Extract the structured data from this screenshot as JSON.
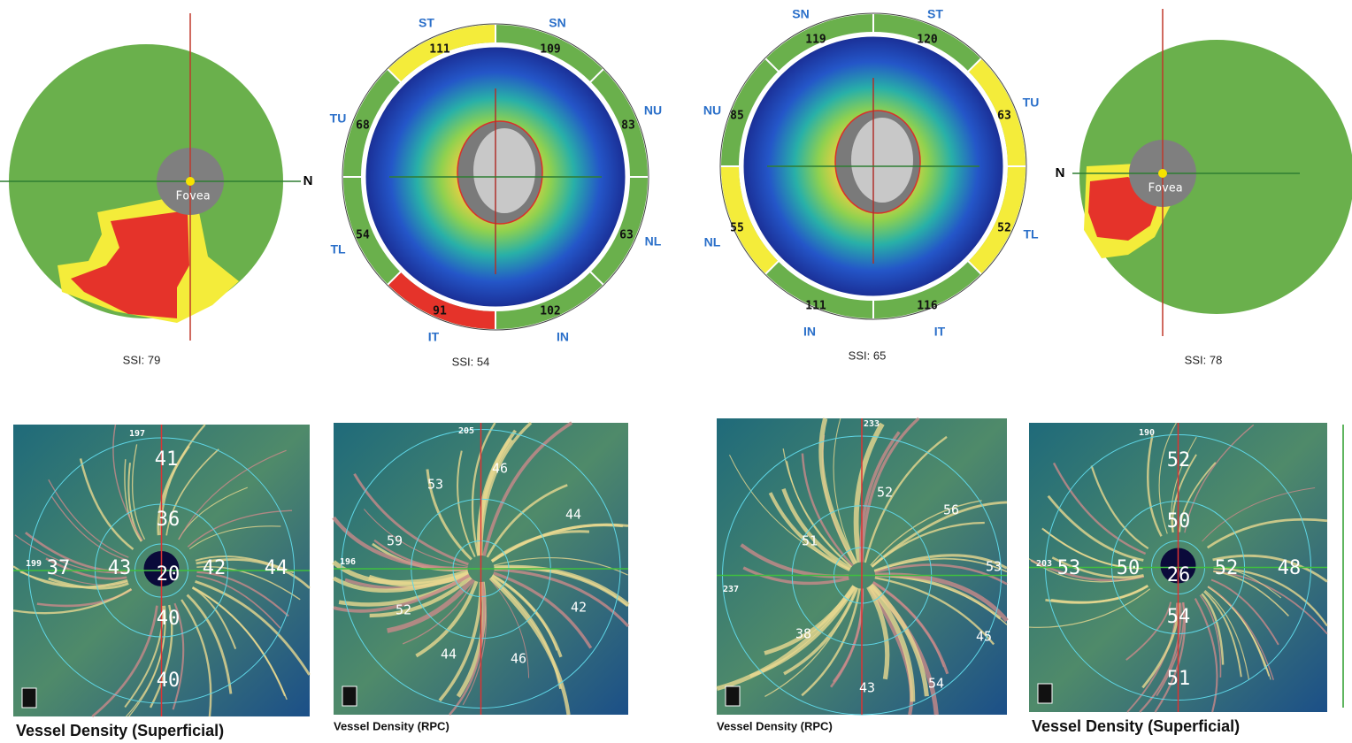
{
  "top": [
    {
      "side": "N",
      "label": "Fovea",
      "ssi": "SSI: 79"
    },
    {
      "sectors": [
        {
          "name": "ST",
          "value": 111
        },
        {
          "name": "SN",
          "value": 109
        },
        {
          "name": "TU",
          "value": 68
        },
        {
          "name": "NU",
          "value": 83
        },
        {
          "name": "TL",
          "value": 54
        },
        {
          "name": "NL",
          "value": 63
        },
        {
          "name": "IT",
          "value": 91
        },
        {
          "name": "IN",
          "value": 102
        }
      ],
      "ssi": "SSI: 54"
    },
    {
      "sectors": [
        {
          "name": "SN",
          "value": 119
        },
        {
          "name": "ST",
          "value": 120
        },
        {
          "name": "NU",
          "value": 85
        },
        {
          "name": "TU",
          "value": 63
        },
        {
          "name": "NL",
          "value": 55
        },
        {
          "name": "TL",
          "value": 52
        },
        {
          "name": "IN",
          "value": 111
        },
        {
          "name": "IT",
          "value": 116
        }
      ],
      "ssi": "SSI: 65"
    },
    {
      "side": "N",
      "label": "Fovea",
      "ssi": "SSI: 78"
    }
  ],
  "bottom": [
    {
      "caption": "Vessel Density (Superficial)",
      "numbers": [
        197,
        41,
        36,
        199,
        37,
        43,
        20,
        42,
        44,
        40,
        40
      ]
    },
    {
      "caption": "Vessel Density (RPC)",
      "numbers": [
        205,
        46,
        53,
        44,
        59,
        196,
        52,
        42,
        44,
        46
      ]
    },
    {
      "caption": "Vessel Density (RPC)",
      "numbers": [
        233,
        52,
        56,
        51,
        53,
        237,
        38,
        45,
        43,
        54
      ]
    },
    {
      "caption": "Vessel Density (Superficial)",
      "numbers": [
        190,
        52,
        50,
        203,
        53,
        50,
        26,
        52,
        48,
        54,
        51
      ]
    }
  ]
}
